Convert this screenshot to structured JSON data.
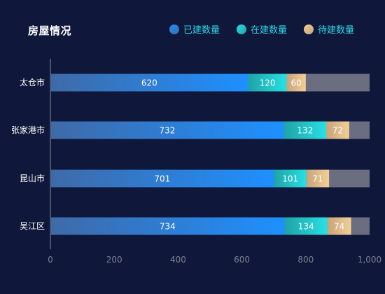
{
  "chart_data": {
    "type": "bar",
    "orientation": "horizontal",
    "stacked": true,
    "title": "房屋情况",
    "categories": [
      "太仓市",
      "张家港市",
      "昆山市",
      "吴江区"
    ],
    "series": [
      {
        "name": "已建数量",
        "values": [
          620,
          732,
          701,
          734
        ],
        "color_start": "#3f6aa8",
        "color_end": "#1e90ff"
      },
      {
        "name": "在建数量",
        "values": [
          120,
          132,
          101,
          134
        ],
        "color_start": "#1fa3a6",
        "color_end": "#27e0e4"
      },
      {
        "name": "待建数量",
        "values": [
          60,
          72,
          71,
          74
        ],
        "color_start": "#c7a47c",
        "color_end": "#f3cf95"
      }
    ],
    "remainder_color": "#6a6e80",
    "xlim": [
      0,
      1000
    ],
    "xticks": [
      "0",
      "200",
      "400",
      "600",
      "800",
      "1,000"
    ],
    "legend_position": "top-right",
    "legend_text_color": "#2ed6e8",
    "data_label_color": "#ffffff"
  }
}
